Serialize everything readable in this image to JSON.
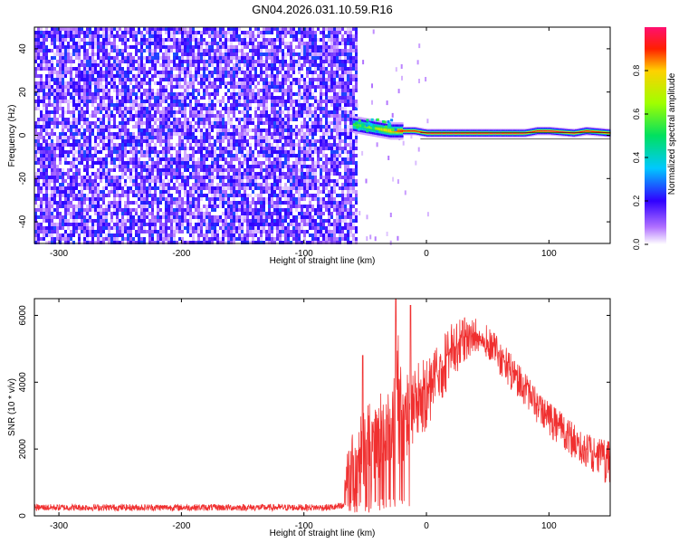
{
  "title": "GN04.2026.031.10.59.R16",
  "colors": {
    "snr_line": "#f03030",
    "ridge_core": "#f00a3c",
    "plot_frame": "#000000"
  },
  "chart_data": [
    {
      "type": "heatmap",
      "title": "GN04.2026.031.10.59.R16",
      "xlabel": "Height of straight line (km)",
      "ylabel": "Frequency (Hz)",
      "xlim": [
        -320,
        150
      ],
      "ylim": [
        -50,
        50
      ],
      "x_ticks": [
        -300,
        -200,
        -100,
        0,
        100
      ],
      "y_ticks": [
        -40,
        -20,
        0,
        20,
        40
      ],
      "colorbar": {
        "label": "Normalized spectral amplitude",
        "range": [
          0.0,
          1.0
        ],
        "ticks": [
          0.0,
          0.2,
          0.4,
          0.6,
          0.8
        ],
        "tick_labels": [
          "0.0",
          "0.2",
          "0.4",
          "0.6",
          "0.8"
        ]
      },
      "noise_region_x": [
        -320,
        -58
      ],
      "ridge": {
        "x": [
          -60,
          -50,
          -40,
          -30,
          -20,
          -10,
          0,
          20,
          40,
          60,
          80,
          90,
          100,
          120,
          130,
          150
        ],
        "frequency": [
          5,
          4,
          3,
          2,
          2,
          2,
          1,
          1,
          1,
          1,
          1,
          2,
          2,
          1,
          2,
          1
        ],
        "amplitude": [
          0.55,
          0.6,
          0.7,
          0.8,
          0.9,
          0.9,
          0.95,
          0.95,
          0.95,
          0.95,
          0.95,
          0.9,
          0.95,
          0.95,
          0.9,
          0.9
        ]
      }
    },
    {
      "type": "line",
      "xlabel": "Height of straight line (km)",
      "ylabel": "SNR (10 * v/v)",
      "xlim": [
        -320,
        150
      ],
      "ylim": [
        0,
        6500
      ],
      "x_ticks": [
        -300,
        -200,
        -100,
        0,
        100
      ],
      "y_ticks": [
        0,
        2000,
        4000,
        6000
      ],
      "envelope": {
        "x": [
          -320,
          -200,
          -80,
          -68,
          -65,
          -60,
          -50,
          -40,
          -30,
          -25,
          -20,
          -10,
          0,
          10,
          20,
          30,
          40,
          50,
          60,
          70,
          80,
          90,
          100,
          110,
          120,
          130,
          140,
          150
        ],
        "low": [
          150,
          150,
          150,
          150,
          300,
          600,
          800,
          1100,
          1300,
          1400,
          1600,
          2000,
          2600,
          3300,
          4000,
          4500,
          4900,
          4700,
          4200,
          3700,
          3300,
          2800,
          2400,
          2000,
          1700,
          1400,
          1100,
          900
        ],
        "high": [
          350,
          350,
          350,
          400,
          1800,
          2600,
          3200,
          3700,
          3800,
          6500,
          4000,
          4600,
          4700,
          5100,
          5800,
          6000,
          5900,
          5700,
          5300,
          4800,
          4300,
          3800,
          3400,
          3100,
          2800,
          2500,
          2300,
          2300
        ]
      },
      "spikes": [
        {
          "x": -52,
          "value": 4800
        },
        {
          "x": -25,
          "value": 6500
        },
        {
          "x": -13,
          "value": 6300
        }
      ]
    }
  ]
}
